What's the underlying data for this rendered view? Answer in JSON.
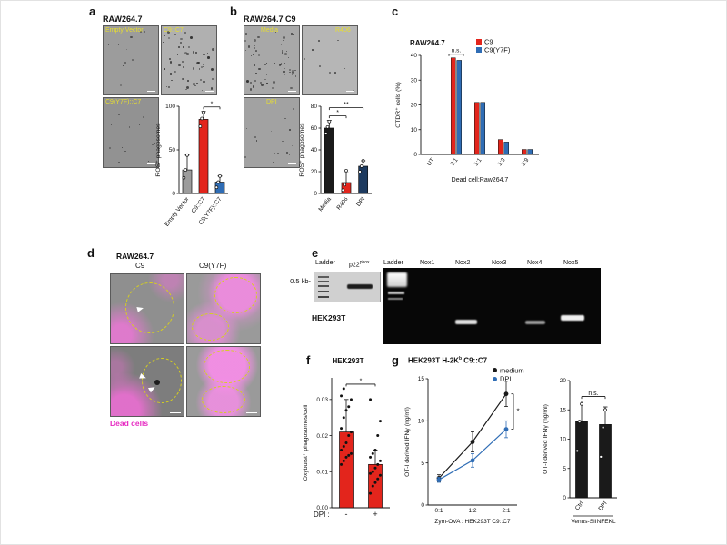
{
  "panels": {
    "a": {
      "label": "a",
      "cell_line": "RAW264.7",
      "images": [
        {
          "label": "Empty Vector"
        },
        {
          "label": "C9::C7"
        },
        {
          "label": "C9(Y7F)::C7"
        }
      ]
    },
    "b": {
      "label": "b",
      "cell_line": "RAW264.7 C9",
      "images": [
        {
          "label": "Media"
        },
        {
          "label": "R406"
        },
        {
          "label": "DPI"
        }
      ]
    },
    "c": {
      "label": "c"
    },
    "d": {
      "label": "d",
      "cell_line": "RAW264.7",
      "col1": "C9",
      "col2": "C9(Y7F)",
      "caption": "Dead cells"
    },
    "e": {
      "label": "e",
      "size_marker": "0.5 kb-",
      "cell_line": "HEK293T",
      "lanes": [
        {
          "t": "Ladder"
        },
        {
          "t": "p22",
          "sup": "phox"
        },
        {
          "t": "Ladder"
        },
        {
          "t": "Nox1"
        },
        {
          "t": "Nox2"
        },
        {
          "t": "Nox3"
        },
        {
          "t": "Nox4"
        },
        {
          "t": "Nox5"
        }
      ]
    },
    "f": {
      "label": "f",
      "x_prefix": "DPI :"
    },
    "g": {
      "label": "g",
      "title_pre": "HEK293T H-2K",
      "title_sup": "b",
      "title_post": " C9::C7"
    }
  },
  "chart_data": [
    {
      "id": "ros_a",
      "type": "bar",
      "ylabel": "ROS⁺ phagosomes",
      "categories": [
        "Empty Vector",
        "C9::C7",
        "C9(Y7F)::C7"
      ],
      "values": [
        27,
        85,
        13
      ],
      "errors": [
        17,
        9,
        7
      ],
      "points": [
        [
          18,
          27,
          44
        ],
        [
          77,
          86,
          93
        ],
        [
          7,
          13,
          20
        ]
      ],
      "point_style": "open",
      "colors": [
        "#9c9c9c",
        "#e3251c",
        "#2f6db5"
      ],
      "ylim": [
        0,
        100
      ],
      "yticks": [
        0,
        50,
        100
      ],
      "sig_brackets": [
        {
          "a": 1,
          "b": 2,
          "label": "*"
        }
      ]
    },
    {
      "id": "ros_b",
      "type": "bar",
      "ylabel": "ROS⁺ phagosomes",
      "categories": [
        "Media",
        "R406",
        "DPI"
      ],
      "values": [
        60,
        10,
        25
      ],
      "errors": [
        7,
        9,
        5
      ],
      "points": [
        [
          55,
          61,
          66
        ],
        [
          3,
          8,
          21
        ],
        [
          20,
          25,
          30
        ]
      ],
      "point_style": "open",
      "colors": [
        "#1a1a1a",
        "#e3251c",
        "#1d3a5f"
      ],
      "ylim": [
        0,
        80
      ],
      "yticks": [
        0,
        20,
        40,
        60,
        80
      ],
      "sig_brackets": [
        {
          "a": 0,
          "b": 1,
          "label": "*"
        },
        {
          "a": 0,
          "b": 2,
          "label": "**"
        }
      ]
    },
    {
      "id": "ctdr",
      "type": "grouped_bar",
      "title": "RAW264.7",
      "ylabel": "CTDR⁺ cells (%)",
      "xlabel": "Dead cell:Raw264.7",
      "categories": [
        "UT",
        "2:1",
        "1:1",
        "1:3",
        "1:9"
      ],
      "series": [
        {
          "name": "C9",
          "color": "#e3251c",
          "values": [
            0,
            39,
            21,
            6,
            2
          ]
        },
        {
          "name": "C9(Y7F)",
          "color": "#2f6db5",
          "values": [
            0,
            38,
            21,
            5,
            2
          ]
        }
      ],
      "ylim": [
        0,
        40
      ],
      "yticks": [
        0,
        10,
        20,
        30,
        40
      ],
      "annotation": {
        "label": "n.s.",
        "at": 1
      }
    },
    {
      "id": "oxyburst",
      "type": "bar",
      "title": "HEK293T",
      "ylabel": "Oxyburst⁺ phagosomes/cell",
      "categories": [
        "-",
        "+"
      ],
      "values": [
        0.021,
        0.012
      ],
      "errors": [
        0.009,
        0.004
      ],
      "colors": [
        "#e3251c",
        "#e3251c"
      ],
      "point_style": "filled",
      "points": [
        [
          0.012,
          0.013,
          0.014,
          0.0145,
          0.015,
          0.016,
          0.017,
          0.018,
          0.02,
          0.021,
          0.022,
          0.025,
          0.027,
          0.028,
          0.03,
          0.031,
          0.033
        ],
        [
          0.004,
          0.006,
          0.007,
          0.008,
          0.009,
          0.0095,
          0.01,
          0.011,
          0.012,
          0.013,
          0.014,
          0.015,
          0.016,
          0.02,
          0.024,
          0.03
        ]
      ],
      "ylim": [
        0,
        0.036
      ],
      "yticks": [
        0,
        0.01,
        0.02,
        0.03
      ],
      "ytick_labels": [
        "0.00",
        "0.01",
        "0.02",
        "0.03"
      ],
      "sig_brackets": [
        {
          "a": 0,
          "b": 1,
          "label": "*"
        }
      ]
    },
    {
      "id": "ifng_line",
      "type": "line",
      "ylabel": "OT-I derived IFNγ (ng/ml)",
      "xlabel": "Zym-OVA : HEK293T C9::C7",
      "x": [
        "0:1",
        "1:2",
        "2:1"
      ],
      "series": [
        {
          "name": "medium",
          "color": "#1a1a1a",
          "values": [
            3.2,
            7.5,
            13.2
          ],
          "errors": [
            0.4,
            1.2,
            1.5
          ]
        },
        {
          "name": "DPI",
          "color": "#2f6db5",
          "values": [
            3.0,
            5.3,
            9.0
          ],
          "errors": [
            0.3,
            0.8,
            1.0
          ]
        }
      ],
      "ylim": [
        0,
        15
      ],
      "yticks": [
        0,
        5,
        10,
        15
      ],
      "right_sig": "*"
    },
    {
      "id": "venus",
      "type": "bar",
      "ylabel": "OT-I derived IFNγ (ng/ml)",
      "categories": [
        "Ctrl",
        "DPI"
      ],
      "values": [
        13,
        12.5
      ],
      "errors": [
        3.5,
        3
      ],
      "colors": [
        "#1a1a1a",
        "#1a1a1a"
      ],
      "point_style": "open",
      "points": [
        [
          8,
          13,
          16
        ],
        [
          7,
          12,
          15
        ]
      ],
      "ylim": [
        0,
        20
      ],
      "yticks": [
        0,
        5,
        10,
        15,
        20
      ],
      "group_label": "Venus-SIINFEKL",
      "sig_brackets": [
        {
          "a": 0,
          "b": 1,
          "label": "n.s."
        }
      ]
    }
  ]
}
